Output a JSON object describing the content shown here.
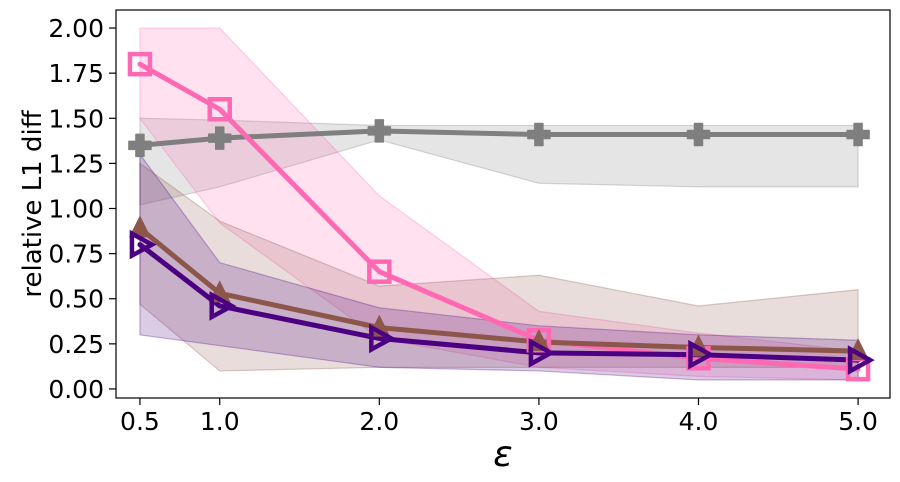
{
  "chart_data": {
    "type": "line",
    "title": "",
    "xlabel": "ε",
    "ylabel": "relative L1 diff",
    "x": [
      0.5,
      1.0,
      2.0,
      3.0,
      4.0,
      5.0
    ],
    "x_tick_labels": [
      "0.5",
      "1.0",
      "2.0",
      "3.0",
      "4.0",
      "5.0"
    ],
    "xlim": [
      0.35,
      5.2
    ],
    "ylim": [
      -0.05,
      2.1
    ],
    "y_ticks": [
      0,
      0.25,
      0.5,
      0.75,
      1.0,
      1.25,
      1.5,
      1.75,
      2.0
    ],
    "y_tick_labels": [
      "0.00",
      "0.25",
      "0.50",
      "0.75",
      "1.00",
      "1.25",
      "1.50",
      "1.75",
      "2.00"
    ],
    "grid": false,
    "legend": "none",
    "series": [
      {
        "name": "gray",
        "color": "#7f7f7f",
        "marker": "plus",
        "values": [
          1.35,
          1.39,
          1.43,
          1.41,
          1.41,
          1.41
        ],
        "band_lower": [
          1.02,
          1.12,
          1.38,
          1.14,
          1.12,
          1.12
        ],
        "band_upper": [
          1.5,
          1.49,
          1.46,
          1.46,
          1.46,
          1.46
        ]
      },
      {
        "name": "pink",
        "color": "#ff69b4",
        "marker": "square",
        "values": [
          1.8,
          1.55,
          0.65,
          0.27,
          0.17,
          0.11
        ],
        "band_lower": [
          1.5,
          0.92,
          0.28,
          0.12,
          0.07,
          0.05
        ],
        "band_upper": [
          2.0,
          2.0,
          1.07,
          0.43,
          0.31,
          0.21
        ]
      },
      {
        "name": "brown",
        "color": "#8c564b",
        "marker": "triangle-up",
        "values": [
          0.89,
          0.53,
          0.34,
          0.26,
          0.23,
          0.21
        ],
        "band_lower": [
          0.47,
          0.1,
          0.12,
          0.12,
          0.12,
          0.12
        ],
        "band_upper": [
          1.25,
          0.93,
          0.57,
          0.63,
          0.46,
          0.55
        ]
      },
      {
        "name": "purple",
        "color": "#4b0082",
        "marker": "triangle-right",
        "values": [
          0.8,
          0.46,
          0.28,
          0.2,
          0.19,
          0.16
        ],
        "band_lower": [
          0.3,
          0.24,
          0.12,
          0.1,
          0.05,
          0.05
        ],
        "band_upper": [
          1.3,
          0.7,
          0.45,
          0.35,
          0.3,
          0.27
        ]
      }
    ]
  }
}
